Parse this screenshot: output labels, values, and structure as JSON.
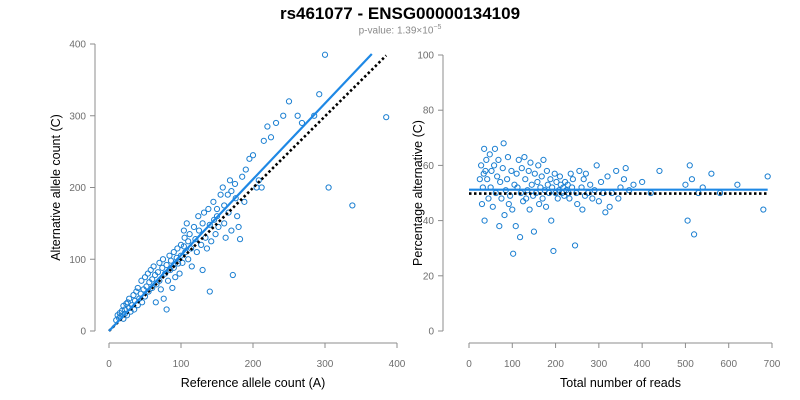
{
  "header": {
    "title": "rs461077 - ENSG00000134109",
    "pvalue_prefix": "p-value: 1.39×10",
    "pvalue_exp": "−5"
  },
  "colors": {
    "points": "#1b7fd1",
    "fit_line": "#1e88e5",
    "reference_line": "#000000",
    "axis": "#8c8c8c"
  },
  "chart_data": [
    {
      "type": "scatter",
      "id": "left",
      "xlabel": "Reference allele count (A)",
      "ylabel": "Alternative allele count (C)",
      "xlim": [
        0,
        400
      ],
      "ylim": [
        0,
        400
      ],
      "xticks": [
        0,
        100,
        200,
        300,
        400
      ],
      "yticks": [
        0,
        100,
        200,
        300,
        400
      ],
      "fit_line": {
        "x": [
          0,
          365
        ],
        "y": [
          0,
          386
        ]
      },
      "reference_line": {
        "x": [
          0,
          385
        ],
        "y": [
          0,
          384
        ]
      },
      "points": [
        [
          10,
          15
        ],
        [
          12,
          22
        ],
        [
          14,
          18
        ],
        [
          15,
          25
        ],
        [
          16,
          20
        ],
        [
          18,
          28
        ],
        [
          20,
          17
        ],
        [
          20,
          35
        ],
        [
          22,
          24
        ],
        [
          22,
          30
        ],
        [
          24,
          38
        ],
        [
          25,
          22
        ],
        [
          26,
          40
        ],
        [
          28,
          32
        ],
        [
          28,
          45
        ],
        [
          30,
          27
        ],
        [
          32,
          36
        ],
        [
          34,
          50
        ],
        [
          35,
          30
        ],
        [
          36,
          42
        ],
        [
          38,
          55
        ],
        [
          40,
          36
        ],
        [
          40,
          60
        ],
        [
          42,
          45
        ],
        [
          44,
          52
        ],
        [
          45,
          70
        ],
        [
          46,
          40
        ],
        [
          48,
          58
        ],
        [
          50,
          48
        ],
        [
          50,
          75
        ],
        [
          52,
          62
        ],
        [
          54,
          80
        ],
        [
          55,
          55
        ],
        [
          56,
          68
        ],
        [
          58,
          85
        ],
        [
          60,
          60
        ],
        [
          60,
          72
        ],
        [
          62,
          90
        ],
        [
          64,
          78
        ],
        [
          65,
          40
        ],
        [
          66,
          65
        ],
        [
          68,
          82
        ],
        [
          70,
          95
        ],
        [
          70,
          70
        ],
        [
          72,
          58
        ],
        [
          74,
          88
        ],
        [
          75,
          100
        ],
        [
          76,
          45
        ],
        [
          78,
          80
        ],
        [
          80,
          92
        ],
        [
          80,
          30
        ],
        [
          82,
          70
        ],
        [
          84,
          105
        ],
        [
          85,
          85
        ],
        [
          86,
          98
        ],
        [
          88,
          60
        ],
        [
          90,
          110
        ],
        [
          90,
          88
        ],
        [
          92,
          75
        ],
        [
          94,
          102
        ],
        [
          95,
          115
        ],
        [
          96,
          94
        ],
        [
          98,
          80
        ],
        [
          100,
          120
        ],
        [
          100,
          105
        ],
        [
          102,
          95
        ],
        [
          104,
          140
        ],
        [
          104,
          118
        ],
        [
          105,
          130
        ],
        [
          106,
          110
        ],
        [
          108,
          150
        ],
        [
          110,
          125
        ],
        [
          110,
          100
        ],
        [
          112,
          135
        ],
        [
          114,
          115
        ],
        [
          115,
          90
        ],
        [
          118,
          145
        ],
        [
          120,
          128
        ],
        [
          122,
          110
        ],
        [
          124,
          160
        ],
        [
          125,
          140
        ],
        [
          128,
          120
        ],
        [
          130,
          150
        ],
        [
          130,
          85
        ],
        [
          132,
          165
        ],
        [
          134,
          130
        ],
        [
          136,
          115
        ],
        [
          138,
          170
        ],
        [
          140,
          148
        ],
        [
          140,
          55
        ],
        [
          142,
          125
        ],
        [
          145,
          180
        ],
        [
          146,
          155
        ],
        [
          148,
          135
        ],
        [
          150,
          170
        ],
        [
          150,
          160
        ],
        [
          152,
          145
        ],
        [
          155,
          190
        ],
        [
          158,
          200
        ],
        [
          160,
          175
        ],
        [
          160,
          150
        ],
        [
          162,
          130
        ],
        [
          165,
          190
        ],
        [
          166,
          165
        ],
        [
          168,
          210
        ],
        [
          170,
          195
        ],
        [
          170,
          140
        ],
        [
          172,
          78
        ],
        [
          175,
          205
        ],
        [
          176,
          185
        ],
        [
          178,
          160
        ],
        [
          180,
          145
        ],
        [
          182,
          128
        ],
        [
          185,
          215
        ],
        [
          188,
          180
        ],
        [
          190,
          225
        ],
        [
          195,
          240
        ],
        [
          200,
          245
        ],
        [
          205,
          200
        ],
        [
          208,
          210
        ],
        [
          212,
          200
        ],
        [
          215,
          265
        ],
        [
          220,
          285
        ],
        [
          225,
          270
        ],
        [
          232,
          290
        ],
        [
          242,
          300
        ],
        [
          250,
          320
        ],
        [
          262,
          300
        ],
        [
          268,
          290
        ],
        [
          285,
          300
        ],
        [
          292,
          330
        ],
        [
          300,
          385
        ],
        [
          305,
          200
        ],
        [
          338,
          175
        ],
        [
          385,
          298
        ]
      ]
    },
    {
      "type": "scatter",
      "id": "right",
      "xlabel": "Total number of reads",
      "ylabel": "Percentage alternative (C)",
      "xlim": [
        0,
        700
      ],
      "ylim": [
        0,
        100
      ],
      "xticks": [
        0,
        100,
        200,
        300,
        400,
        500,
        600,
        700
      ],
      "yticks": [
        0,
        20,
        40,
        60,
        80,
        100
      ],
      "fit_line": {
        "x": [
          0,
          690
        ],
        "y": [
          51.2,
          51.2
        ]
      },
      "reference_line": {
        "x": [
          0,
          690
        ],
        "y": [
          49.8,
          49.8
        ]
      },
      "points": [
        [
          25,
          55
        ],
        [
          28,
          60
        ],
        [
          30,
          46
        ],
        [
          32,
          52
        ],
        [
          34,
          57
        ],
        [
          35,
          66
        ],
        [
          36,
          40
        ],
        [
          38,
          58
        ],
        [
          40,
          62
        ],
        [
          42,
          55
        ],
        [
          45,
          48
        ],
        [
          48,
          64
        ],
        [
          50,
          52
        ],
        [
          52,
          58
        ],
        [
          55,
          45
        ],
        [
          58,
          60
        ],
        [
          60,
          66
        ],
        [
          62,
          50
        ],
        [
          65,
          56
        ],
        [
          68,
          62
        ],
        [
          70,
          38
        ],
        [
          72,
          54
        ],
        [
          75,
          48
        ],
        [
          78,
          59
        ],
        [
          80,
          68
        ],
        [
          82,
          42
        ],
        [
          85,
          51
        ],
        [
          88,
          55
        ],
        [
          90,
          63
        ],
        [
          92,
          46
        ],
        [
          95,
          49
        ],
        [
          98,
          58
        ],
        [
          100,
          44
        ],
        [
          102,
          28
        ],
        [
          105,
          53
        ],
        [
          108,
          38
        ],
        [
          110,
          57
        ],
        [
          112,
          52
        ],
        [
          115,
          62
        ],
        [
          118,
          34
        ],
        [
          120,
          50
        ],
        [
          122,
          59
        ],
        [
          125,
          47
        ],
        [
          128,
          63
        ],
        [
          130,
          55
        ],
        [
          132,
          48
        ],
        [
          135,
          51
        ],
        [
          138,
          58
        ],
        [
          140,
          44
        ],
        [
          142,
          61
        ],
        [
          145,
          53
        ],
        [
          148,
          49
        ],
        [
          150,
          36
        ],
        [
          152,
          57
        ],
        [
          155,
          50
        ],
        [
          158,
          54
        ],
        [
          160,
          60
        ],
        [
          162,
          46
        ],
        [
          165,
          52
        ],
        [
          168,
          56
        ],
        [
          170,
          48
        ],
        [
          172,
          62
        ],
        [
          175,
          51
        ],
        [
          178,
          45
        ],
        [
          180,
          58
        ],
        [
          182,
          53
        ],
        [
          185,
          50
        ],
        [
          188,
          55
        ],
        [
          190,
          40
        ],
        [
          192,
          52
        ],
        [
          195,
          29
        ],
        [
          198,
          57
        ],
        [
          200,
          50
        ],
        [
          202,
          54
        ],
        [
          205,
          48
        ],
        [
          208,
          51
        ],
        [
          210,
          56
        ],
        [
          212,
          53
        ],
        [
          215,
          50
        ],
        [
          218,
          52
        ],
        [
          220,
          49
        ],
        [
          222,
          54
        ],
        [
          225,
          51
        ],
        [
          228,
          53
        ],
        [
          230,
          50
        ],
        [
          232,
          48
        ],
        [
          235,
          57
        ],
        [
          238,
          52
        ],
        [
          240,
          55
        ],
        [
          245,
          31
        ],
        [
          248,
          50
        ],
        [
          250,
          46
        ],
        [
          255,
          58
        ],
        [
          260,
          52
        ],
        [
          262,
          44
        ],
        [
          265,
          55
        ],
        [
          268,
          49
        ],
        [
          270,
          57
        ],
        [
          275,
          50
        ],
        [
          280,
          53
        ],
        [
          285,
          48
        ],
        [
          290,
          51
        ],
        [
          295,
          60
        ],
        [
          300,
          47
        ],
        [
          305,
          54
        ],
        [
          310,
          50
        ],
        [
          315,
          43
        ],
        [
          320,
          56
        ],
        [
          325,
          45
        ],
        [
          330,
          50
        ],
        [
          340,
          58
        ],
        [
          345,
          48
        ],
        [
          350,
          52
        ],
        [
          358,
          55
        ],
        [
          362,
          59
        ],
        [
          370,
          51
        ],
        [
          380,
          53
        ],
        [
          400,
          54
        ],
        [
          420,
          50
        ],
        [
          440,
          58
        ],
        [
          500,
          53
        ],
        [
          505,
          40
        ],
        [
          510,
          60
        ],
        [
          515,
          55
        ],
        [
          520,
          35
        ],
        [
          530,
          50
        ],
        [
          540,
          52
        ],
        [
          560,
          57
        ],
        [
          580,
          50
        ],
        [
          620,
          53
        ],
        [
          680,
          44
        ],
        [
          690,
          56
        ]
      ]
    }
  ]
}
